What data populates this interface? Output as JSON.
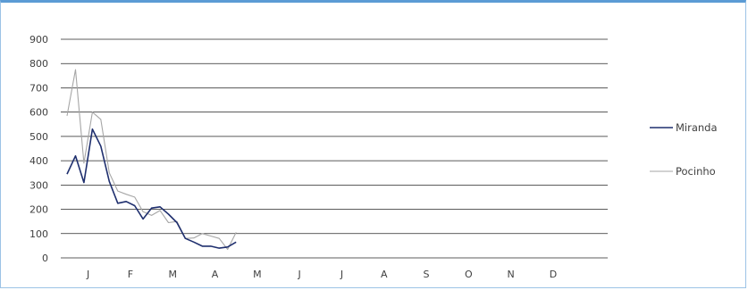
{
  "chart_data": {
    "type": "line",
    "title": "",
    "xlabel": "",
    "ylabel": "",
    "ylim": [
      0,
      900
    ],
    "yticks": [
      0,
      100,
      200,
      300,
      400,
      500,
      600,
      700,
      800,
      900
    ],
    "month_labels": [
      "J",
      "F",
      "M",
      "A",
      "M",
      "J",
      "J",
      "A",
      "S",
      "O",
      "N",
      "D"
    ],
    "points_per_month": 5,
    "grid": true,
    "legend_position": "right",
    "series": [
      {
        "name": "Miranda",
        "color": "#1f2f6e",
        "values": [
          345,
          420,
          310,
          530,
          460,
          315,
          225,
          232,
          215,
          160,
          205,
          210,
          180,
          145,
          80,
          65,
          48,
          48,
          40,
          45,
          65
        ]
      },
      {
        "name": "Pocinho",
        "color": "#a6a6a6",
        "values": [
          585,
          775,
          390,
          600,
          570,
          350,
          275,
          262,
          250,
          190,
          175,
          195,
          145,
          150,
          80,
          82,
          100,
          90,
          80,
          35,
          105
        ]
      }
    ]
  }
}
